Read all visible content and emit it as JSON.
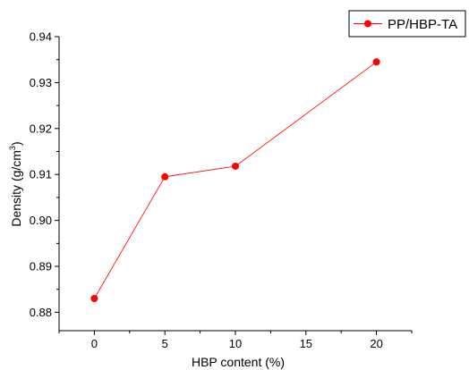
{
  "chart_data": {
    "type": "line",
    "x": [
      0,
      5,
      10,
      20
    ],
    "x_ticks": [
      "0",
      "5",
      "10",
      "15",
      "20"
    ],
    "y_ticks": [
      "0.88",
      "0.89",
      "0.90",
      "0.91",
      "0.92",
      "0.93",
      "0.94"
    ],
    "series": [
      {
        "name": "PP/HBP-TA",
        "values": [
          0.883,
          0.9095,
          0.9118,
          0.9345
        ]
      }
    ],
    "xlabel": "HBP content (%)",
    "ylabel": "Density (g/cm",
    "ylabel_sup": "3",
    "ylabel_end": ")",
    "xlim": [
      -2.5,
      22.5
    ],
    "ylim": [
      0.876,
      0.94
    ],
    "grid": false,
    "legend_position": "top-right",
    "colors": {
      "series": "#ff0000",
      "axis": "#000000"
    }
  }
}
